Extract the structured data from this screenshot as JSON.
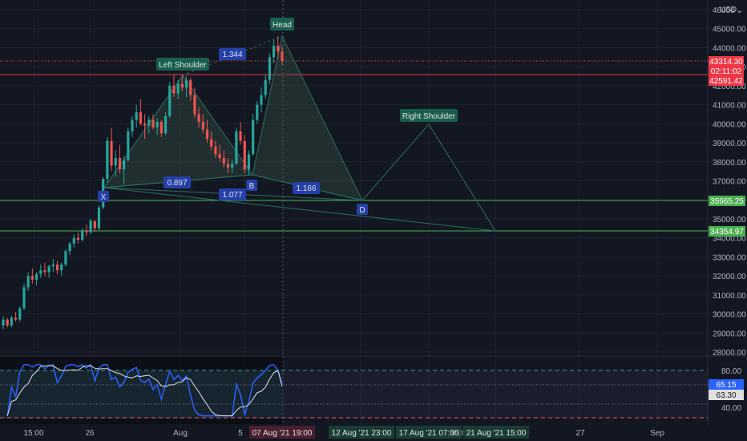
{
  "currency": "USD",
  "colors": {
    "background": "#131722",
    "grid": "#1e222d",
    "axis_text": "#b2b5be",
    "bull": "#26a69a",
    "bear": "#ef5350",
    "pattern_fill": "#3d5a4a",
    "pattern_line": "#2b6f5e",
    "label_blue": "#2540a8",
    "label_green": "#1a5e4e",
    "h_red": "#f23645",
    "h_green": "#4caf50",
    "rsi_line": "#2962ff",
    "rsi_ma": "#e0e0e0"
  },
  "price_axis": {
    "ticks": [
      "46000.00",
      "45000.00",
      "44000.00",
      "43000.00",
      "42000.00",
      "41000.00",
      "40000.00",
      "39000.00",
      "38000.00",
      "37000.00",
      "36000.00",
      "35000.00",
      "34000.00",
      "33000.00",
      "32000.00",
      "31000.00",
      "30000.00",
      "29000.00",
      "28000.00"
    ],
    "current_price": "43314.30",
    "countdown": "02:11:02",
    "red_line": "42591.42",
    "green_line_1": "35965.25",
    "green_line_2": "34354.97"
  },
  "rsi_axis": {
    "ticks": [
      "80.00",
      "60.00",
      "40.00"
    ],
    "rsi_value": "65.15",
    "rsi_ma_value": "63.30"
  },
  "time_axis": {
    "ticks": [
      "15:00",
      "26",
      "Aug",
      "5",
      "27",
      "Sep"
    ],
    "highlight_main": "07 Aug '21   19:00",
    "highlight_2": "12 Aug '21   23:00",
    "highlight_3": "17 Aug '21   07:00",
    "highlight_3b": "15:00",
    "highlight_4": "21 Aug '21   15:00"
  },
  "pattern_labels": {
    "head": "Head",
    "left_shoulder": "Left Shoulder",
    "right_shoulder": "Right Shoulder",
    "x": "X",
    "b": "B",
    "d": "D",
    "ratio_1": "1.344",
    "ratio_2": "0.897",
    "ratio_3": "1.077",
    "ratio_4": "1.166"
  },
  "chart_data": {
    "type": "candlestick",
    "symbol_currency": "USD",
    "ylim": [
      28000,
      46000
    ],
    "rsi_ylim": [
      20,
      90
    ],
    "candles_ohlc": [
      [
        29400,
        29900,
        29200,
        29700
      ],
      [
        29700,
        29800,
        29300,
        29400
      ],
      [
        29400,
        29900,
        29300,
        29800
      ],
      [
        29800,
        30100,
        29600,
        29700
      ],
      [
        29700,
        30400,
        29600,
        30300
      ],
      [
        30300,
        31600,
        30200,
        31400
      ],
      [
        31400,
        32200,
        31200,
        32000
      ],
      [
        32000,
        32400,
        31600,
        31800
      ],
      [
        31800,
        32200,
        31500,
        32100
      ],
      [
        32100,
        32600,
        31900,
        32300
      ],
      [
        32300,
        32700,
        32000,
        32200
      ],
      [
        32200,
        32600,
        31900,
        32500
      ],
      [
        32500,
        32900,
        32200,
        32600
      ],
      [
        32600,
        32800,
        32100,
        32300
      ],
      [
        32300,
        32700,
        32000,
        32600
      ],
      [
        32600,
        33400,
        32500,
        33300
      ],
      [
        33300,
        33800,
        33100,
        33700
      ],
      [
        33700,
        34200,
        33500,
        34000
      ],
      [
        34000,
        34300,
        33700,
        33900
      ],
      [
        33900,
        34500,
        33800,
        34400
      ],
      [
        34400,
        34700,
        34100,
        34300
      ],
      [
        34300,
        35000,
        34200,
        34900
      ],
      [
        34900,
        34800,
        34300,
        34500
      ],
      [
        34500,
        35700,
        34400,
        35600
      ],
      [
        35600,
        37200,
        35500,
        37100
      ],
      [
        37100,
        39300,
        36900,
        39100
      ],
      [
        39100,
        39800,
        37500,
        37800
      ],
      [
        37800,
        38600,
        37200,
        38200
      ],
      [
        38200,
        38900,
        37400,
        37600
      ],
      [
        37600,
        38300,
        36800,
        38100
      ],
      [
        38100,
        39800,
        38000,
        39600
      ],
      [
        39600,
        40400,
        39300,
        40200
      ],
      [
        40200,
        41000,
        39800,
        40600
      ],
      [
        40600,
        41300,
        39900,
        40000
      ],
      [
        40000,
        40500,
        39200,
        39900
      ],
      [
        39900,
        40400,
        39500,
        40200
      ],
      [
        40200,
        40500,
        39700,
        39800
      ],
      [
        39800,
        40300,
        39400,
        40100
      ],
      [
        40100,
        40200,
        39300,
        39500
      ],
      [
        39500,
        40600,
        39400,
        40400
      ],
      [
        40400,
        42200,
        40300,
        42000
      ],
      [
        42000,
        42600,
        41400,
        41600
      ],
      [
        41600,
        42300,
        41300,
        42100
      ],
      [
        42100,
        42600,
        41700,
        41900
      ],
      [
        41900,
        42500,
        41400,
        42300
      ],
      [
        42300,
        42400,
        41200,
        41500
      ],
      [
        41500,
        41900,
        40300,
        40500
      ],
      [
        40500,
        40900,
        39800,
        40100
      ],
      [
        40100,
        40500,
        39500,
        39700
      ],
      [
        39700,
        40200,
        39000,
        39200
      ],
      [
        39200,
        39600,
        38600,
        38800
      ],
      [
        38800,
        39100,
        38200,
        38400
      ],
      [
        38400,
        38900,
        38000,
        38200
      ],
      [
        38200,
        38600,
        37700,
        37900
      ],
      [
        37900,
        38200,
        37400,
        37700
      ],
      [
        37700,
        38100,
        37400,
        37900
      ],
      [
        37900,
        39800,
        37800,
        39600
      ],
      [
        39600,
        40100,
        38900,
        39100
      ],
      [
        39100,
        39400,
        37400,
        37600
      ],
      [
        37600,
        38600,
        37300,
        38400
      ],
      [
        38400,
        40500,
        38300,
        40200
      ],
      [
        40200,
        41200,
        40000,
        41000
      ],
      [
        41000,
        41900,
        40600,
        41500
      ],
      [
        41500,
        42600,
        41300,
        42300
      ],
      [
        42300,
        43700,
        42100,
        43500
      ],
      [
        43500,
        44400,
        43200,
        44100
      ],
      [
        44100,
        44600,
        43400,
        43800
      ],
      [
        43800,
        44100,
        43100,
        43314
      ]
    ],
    "horizontal_levels": [
      42591.42,
      35965.25,
      34354.97
    ],
    "pattern_points": {
      "X": 36500,
      "left_shoulder": 42300,
      "B": 37300,
      "head": 44500,
      "D": 35965,
      "right_shoulder": 39900
    },
    "ratios": [
      1.344,
      0.897,
      1.077,
      1.166
    ],
    "rsi": {
      "overbought": 80,
      "oversold": 30,
      "current": 65.15,
      "ma_current": 63.3
    }
  }
}
